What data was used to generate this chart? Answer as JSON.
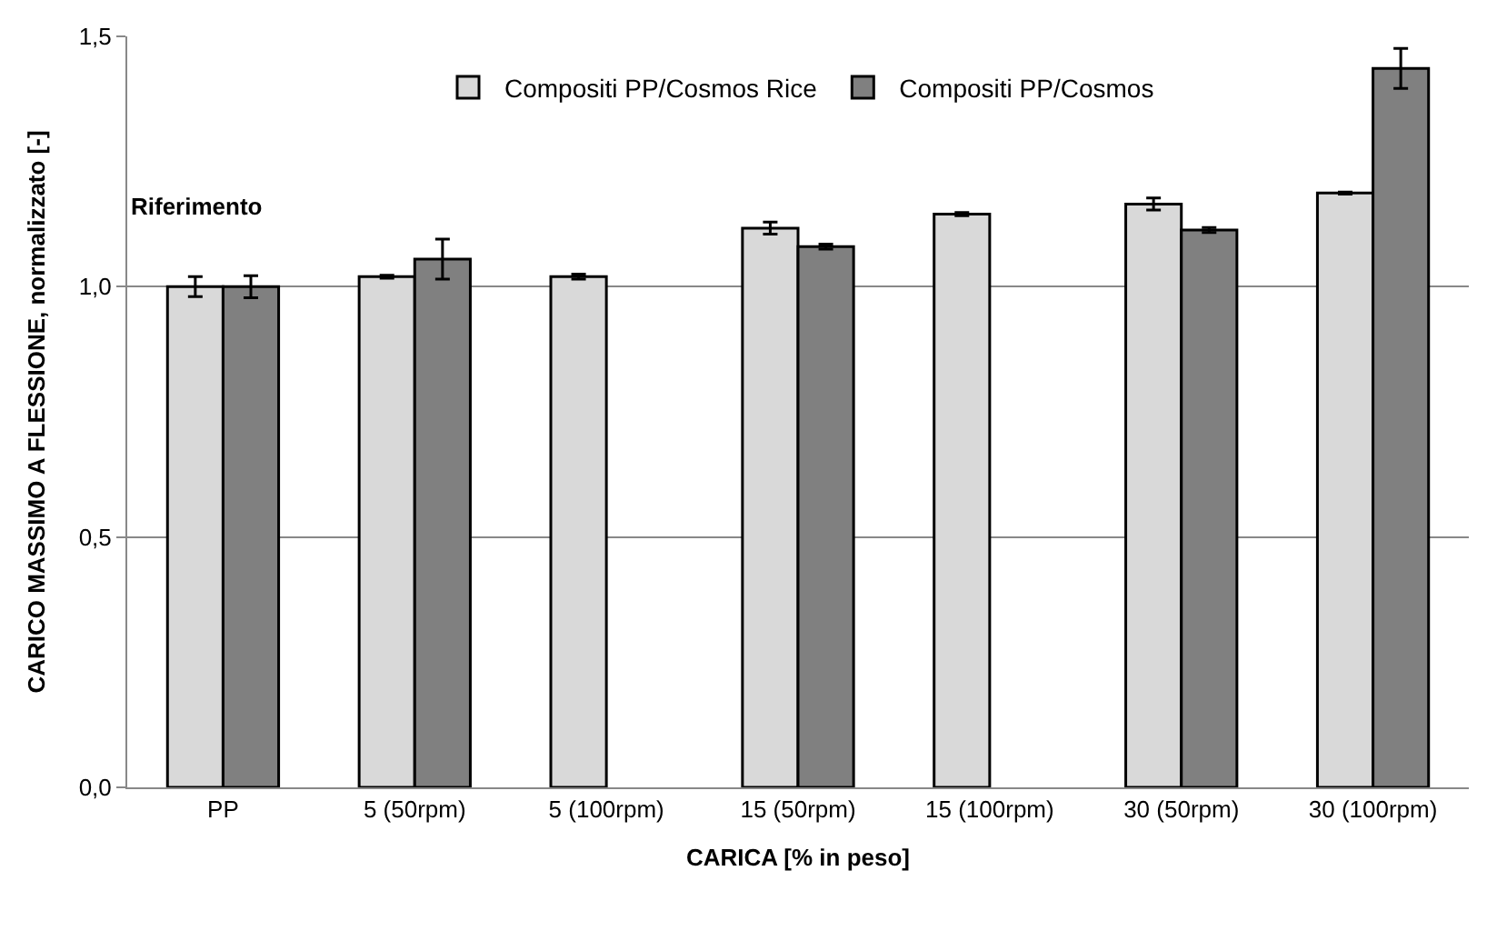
{
  "chart_data": {
    "type": "bar",
    "xlabel": "CARICA [% in peso]",
    "ylabel": "CARICO MASSIMO A FLESSIONE, normalizzato [-]",
    "categories": [
      "PP",
      "5 (50rpm)",
      "5 (100rpm)",
      "15 (50rpm)",
      "15 (100rpm)",
      "30 (50rpm)",
      "30 (100rpm)"
    ],
    "series": [
      {
        "name": "Compositi PP/Cosmos Rice",
        "color": "#d9d9d9",
        "values": [
          1.0,
          1.02,
          1.02,
          1.117,
          1.145,
          1.165,
          1.187
        ],
        "errors": [
          0.02,
          0.003,
          0.005,
          0.012,
          0.003,
          0.012,
          0.002
        ]
      },
      {
        "name": "Compositi PP/Cosmos",
        "color": "#808080",
        "values": [
          1.0,
          1.055,
          null,
          1.08,
          null,
          1.113,
          1.436
        ],
        "errors": [
          0.022,
          0.04,
          null,
          0.005,
          null,
          0.005,
          0.04
        ]
      }
    ],
    "ylim": [
      0,
      1.5
    ],
    "yticks": [
      {
        "value": 0,
        "label": "0,0"
      },
      {
        "value": 0.5,
        "label": "0,5"
      },
      {
        "value": 1.0,
        "label": "1,0"
      },
      {
        "value": 1.5,
        "label": "1,5"
      }
    ],
    "grid": "y",
    "legend": "top",
    "annotations": [
      "Riferimento"
    ]
  }
}
